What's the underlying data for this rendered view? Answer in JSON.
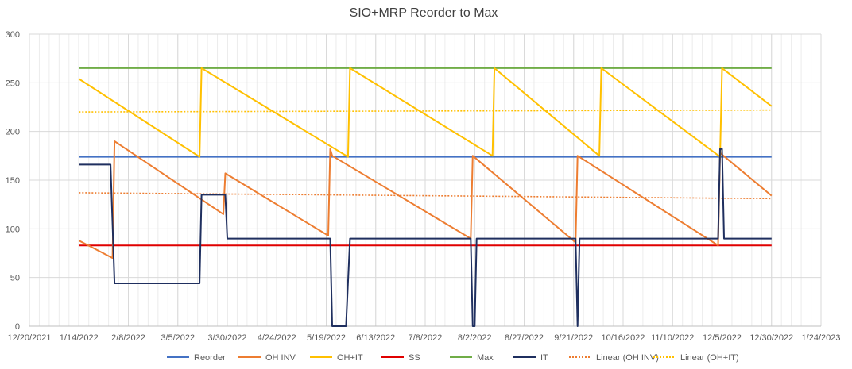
{
  "chart_data": {
    "type": "line",
    "title": "SIO+MRP Reorder to Max",
    "xlabel": "",
    "ylabel": "",
    "x_axis": {
      "min": "2021-12-20",
      "max": "2023-01-24",
      "tick_labels": [
        "12/20/2021",
        "1/14/2022",
        "2/8/2022",
        "3/5/2022",
        "3/30/2022",
        "4/24/2022",
        "5/19/2022",
        "6/13/2022",
        "7/8/2022",
        "8/2/2022",
        "8/27/2022",
        "9/21/2022",
        "10/16/2022",
        "11/10/2022",
        "12/5/2022",
        "12/30/2022",
        "1/24/2023"
      ],
      "tick_dates": [
        "2021-12-20",
        "2022-01-14",
        "2022-02-08",
        "2022-03-05",
        "2022-03-30",
        "2022-04-24",
        "2022-05-19",
        "2022-06-13",
        "2022-07-08",
        "2022-08-02",
        "2022-08-27",
        "2022-09-21",
        "2022-10-16",
        "2022-11-10",
        "2022-12-05",
        "2022-12-30",
        "2023-01-24"
      ]
    },
    "y_axis": {
      "min": 0,
      "max": 300,
      "tick_labels": [
        "0",
        "50",
        "100",
        "150",
        "200",
        "250",
        "300"
      ],
      "ticks": [
        0,
        50,
        100,
        150,
        200,
        250,
        300
      ]
    },
    "grid": "vertical and horizontal",
    "legend_position": "bottom",
    "legend": [
      "Reorder",
      "OH INV",
      "OH+IT",
      "SS",
      "Max",
      "IT",
      "Linear (OH INV)",
      "Linear (OH+IT)"
    ],
    "series": [
      {
        "name": "Reorder",
        "color": "#4472C4",
        "style": "solid",
        "points": [
          [
            "2022-01-14",
            174
          ],
          [
            "2022-12-30",
            174
          ]
        ]
      },
      {
        "name": "OH INV",
        "color": "#ED7D31",
        "style": "solid",
        "points": [
          [
            "2022-01-14",
            88
          ],
          [
            "2022-01-31",
            70
          ],
          [
            "2022-01-31",
            70
          ],
          [
            "2022-02-01",
            190
          ],
          [
            "2022-03-28",
            115
          ],
          [
            "2022-03-29",
            157
          ],
          [
            "2022-05-20",
            93
          ],
          [
            "2022-05-21",
            182
          ],
          [
            "2022-05-22",
            175
          ],
          [
            "2022-07-31",
            90
          ],
          [
            "2022-08-01",
            175
          ],
          [
            "2022-09-22",
            86
          ],
          [
            "2022-09-23",
            175
          ],
          [
            "2022-12-03",
            83
          ],
          [
            "2022-12-04",
            178
          ],
          [
            "2022-12-30",
            134
          ]
        ]
      },
      {
        "name": "OH+IT",
        "color": "#FFC000",
        "style": "solid",
        "points": [
          [
            "2022-01-14",
            254
          ],
          [
            "2022-03-16",
            174
          ],
          [
            "2022-03-17",
            265
          ],
          [
            "2022-05-30",
            174
          ],
          [
            "2022-05-31",
            265
          ],
          [
            "2022-08-11",
            175
          ],
          [
            "2022-08-12",
            265
          ],
          [
            "2022-10-04",
            175
          ],
          [
            "2022-10-05",
            265
          ],
          [
            "2022-12-04",
            174
          ],
          [
            "2022-12-05",
            265
          ],
          [
            "2022-12-30",
            226
          ]
        ]
      },
      {
        "name": "SS",
        "color": "#E00000",
        "style": "solid",
        "points": [
          [
            "2022-01-14",
            83
          ],
          [
            "2022-12-30",
            83
          ]
        ]
      },
      {
        "name": "Max",
        "color": "#70AD47",
        "style": "solid",
        "points": [
          [
            "2022-01-14",
            265
          ],
          [
            "2022-12-30",
            265
          ]
        ]
      },
      {
        "name": "IT",
        "color": "#1F2F5F",
        "style": "solid",
        "points": [
          [
            "2022-01-14",
            166
          ],
          [
            "2022-01-30",
            166
          ],
          [
            "2022-02-01",
            44
          ],
          [
            "2022-03-16",
            44
          ],
          [
            "2022-03-17",
            135
          ],
          [
            "2022-03-29",
            135
          ],
          [
            "2022-03-30",
            90
          ],
          [
            "2022-05-21",
            90
          ],
          [
            "2022-05-22",
            0
          ],
          [
            "2022-05-29",
            0
          ],
          [
            "2022-05-31",
            90
          ],
          [
            "2022-07-31",
            90
          ],
          [
            "2022-08-01",
            0
          ],
          [
            "2022-08-02",
            0
          ],
          [
            "2022-08-03",
            90
          ],
          [
            "2022-09-22",
            90
          ],
          [
            "2022-09-23",
            0
          ],
          [
            "2022-09-24",
            90
          ],
          [
            "2022-12-03",
            90
          ],
          [
            "2022-12-04",
            182
          ],
          [
            "2022-12-05",
            182
          ],
          [
            "2022-12-06",
            90
          ],
          [
            "2022-12-30",
            90
          ]
        ]
      },
      {
        "name": "Linear (OH INV)",
        "color": "#ED7D31",
        "style": "dotted",
        "points": [
          [
            "2022-01-14",
            137
          ],
          [
            "2022-12-30",
            131
          ]
        ]
      },
      {
        "name": "Linear (OH+IT)",
        "color": "#FFC000",
        "style": "dotted",
        "points": [
          [
            "2022-01-14",
            220
          ],
          [
            "2022-12-30",
            222
          ]
        ]
      }
    ]
  }
}
